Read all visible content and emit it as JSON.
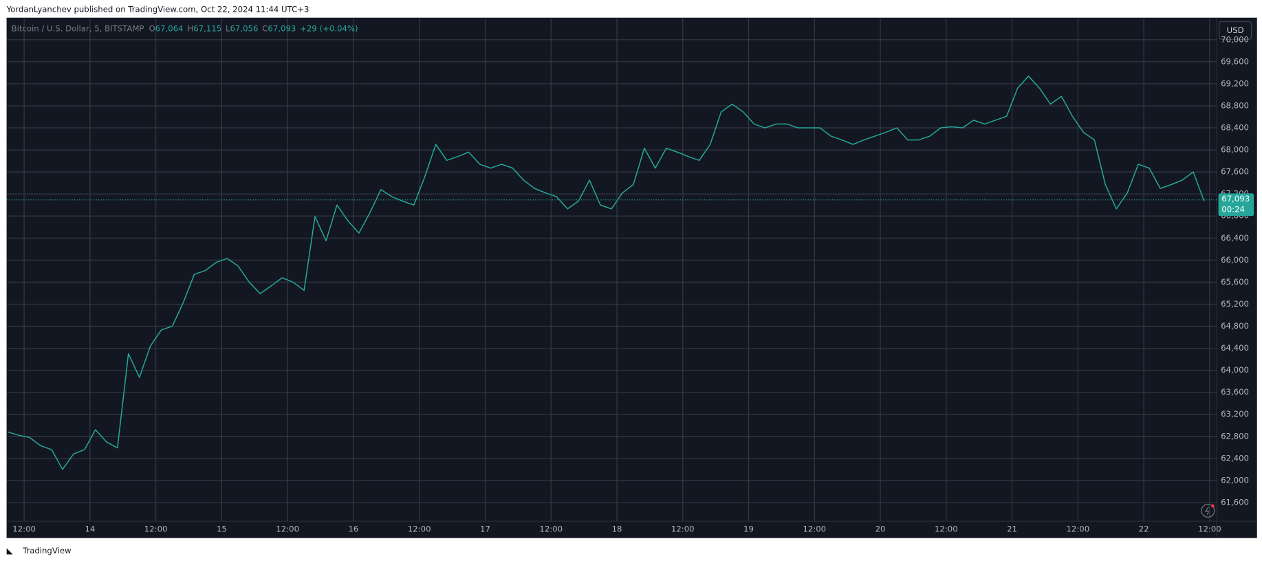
{
  "header": {
    "attribution": "YordanLyanchev published on TradingView.com, Oct 22, 2024 11:44 UTC+3"
  },
  "chart_data": {
    "type": "line",
    "symbol": "Bitcoin / U.S. Dollar, 5, BITSTAMP",
    "legend_items": [
      {
        "key": "O",
        "value": "67,064"
      },
      {
        "key": "H",
        "value": "67,115"
      },
      {
        "key": "L",
        "value": "67,056"
      },
      {
        "key": "C",
        "value": "67,093"
      }
    ],
    "change": "+29 (+0.04%)",
    "currency": "USD",
    "color": "#26a69a",
    "last_price": {
      "value": 67093,
      "label": "67,093"
    },
    "countdown": "00:24",
    "grid": true,
    "xlim": [
      8.8,
      229.3
    ],
    "ylim": [
      61260,
      70400
    ],
    "xticks": [
      {
        "value": 12,
        "label": "12:00"
      },
      {
        "value": 24,
        "label": "14"
      },
      {
        "value": 36,
        "label": "12:00"
      },
      {
        "value": 48,
        "label": "15"
      },
      {
        "value": 60,
        "label": "12:00"
      },
      {
        "value": 72,
        "label": "16"
      },
      {
        "value": 84,
        "label": "12:00"
      },
      {
        "value": 96,
        "label": "17"
      },
      {
        "value": 108,
        "label": "12:00"
      },
      {
        "value": 120,
        "label": "18"
      },
      {
        "value": 132,
        "label": "12:00"
      },
      {
        "value": 144,
        "label": "19"
      },
      {
        "value": 156,
        "label": "12:00"
      },
      {
        "value": 168,
        "label": "20"
      },
      {
        "value": 180,
        "label": "12:00"
      },
      {
        "value": 192,
        "label": "21"
      },
      {
        "value": 204,
        "label": "12:00"
      },
      {
        "value": 216,
        "label": "22"
      },
      {
        "value": 228,
        "label": "12:00"
      }
    ],
    "yticks": [
      {
        "value": 61600,
        "label": "61,600"
      },
      {
        "value": 62000,
        "label": "62,000"
      },
      {
        "value": 62400,
        "label": "62,400"
      },
      {
        "value": 62800,
        "label": "62,800"
      },
      {
        "value": 63200,
        "label": "63,200"
      },
      {
        "value": 63600,
        "label": "63,600"
      },
      {
        "value": 64000,
        "label": "64,000"
      },
      {
        "value": 64400,
        "label": "64,400"
      },
      {
        "value": 64800,
        "label": "64,800"
      },
      {
        "value": 65200,
        "label": "65,200"
      },
      {
        "value": 65600,
        "label": "65,600"
      },
      {
        "value": 66000,
        "label": "66,000"
      },
      {
        "value": 66400,
        "label": "66,400"
      },
      {
        "value": 66800,
        "label": "66,800"
      },
      {
        "value": 67200,
        "label": "67,200"
      },
      {
        "value": 67600,
        "label": "67,600"
      },
      {
        "value": 68000,
        "label": "68,000"
      },
      {
        "value": 68400,
        "label": "68,400"
      },
      {
        "value": 68800,
        "label": "68,800"
      },
      {
        "value": 69200,
        "label": "69,200"
      },
      {
        "value": 69600,
        "label": "69,600"
      },
      {
        "value": 70000,
        "label": "70,000"
      }
    ],
    "x": [
      9,
      11,
      13,
      15,
      17,
      19,
      21,
      23,
      25,
      27,
      29,
      31,
      33,
      35,
      37,
      39,
      41,
      43,
      45,
      47,
      49,
      51,
      53,
      55,
      57,
      59,
      61,
      63,
      65,
      67,
      69,
      71,
      73,
      75,
      77,
      79,
      81,
      83,
      85,
      87,
      89,
      91,
      93,
      95,
      97,
      99,
      101,
      103,
      105,
      107,
      109,
      111,
      113,
      115,
      117,
      119,
      121,
      123,
      125,
      127,
      129,
      131,
      133,
      135,
      137,
      139,
      141,
      143,
      145,
      147,
      149,
      151,
      153,
      155,
      157,
      159,
      161,
      163,
      165,
      167,
      169,
      171,
      173,
      175,
      177,
      179,
      181,
      183,
      185,
      187,
      189,
      191,
      193,
      195,
      197,
      199,
      201,
      203,
      205,
      207,
      209,
      211,
      213,
      215,
      217,
      219,
      221,
      223,
      225,
      227
    ],
    "values": [
      62880,
      62820,
      62780,
      62630,
      62560,
      62200,
      62480,
      62560,
      62920,
      62700,
      62590,
      64300,
      63870,
      64440,
      64730,
      64800,
      65230,
      65740,
      65810,
      65960,
      66030,
      65890,
      65600,
      65390,
      65530,
      65680,
      65600,
      65450,
      66790,
      66350,
      67000,
      66710,
      66490,
      66860,
      67280,
      67150,
      67070,
      67000,
      67510,
      68100,
      67810,
      67880,
      67960,
      67740,
      67670,
      67740,
      67670,
      67450,
      67300,
      67220,
      67150,
      66930,
      67070,
      67450,
      67000,
      66930,
      67220,
      67370,
      68030,
      67670,
      68030,
      67960,
      67880,
      67810,
      68100,
      68690,
      68830,
      68690,
      68470,
      68400,
      68470,
      68470,
      68400,
      68400,
      68400,
      68250,
      68180,
      68100,
      68180,
      68250,
      68320,
      68400,
      68180,
      68180,
      68250,
      68400,
      68420,
      68400,
      68540,
      68470,
      68540,
      68610,
      69120,
      69340,
      69120,
      68830,
      68970,
      68610,
      68320,
      68180,
      67370,
      66930,
      67220,
      67740,
      67670,
      67300,
      67370,
      67450,
      67600,
      67070
    ]
  },
  "footer": {
    "brand": "TradingView"
  }
}
